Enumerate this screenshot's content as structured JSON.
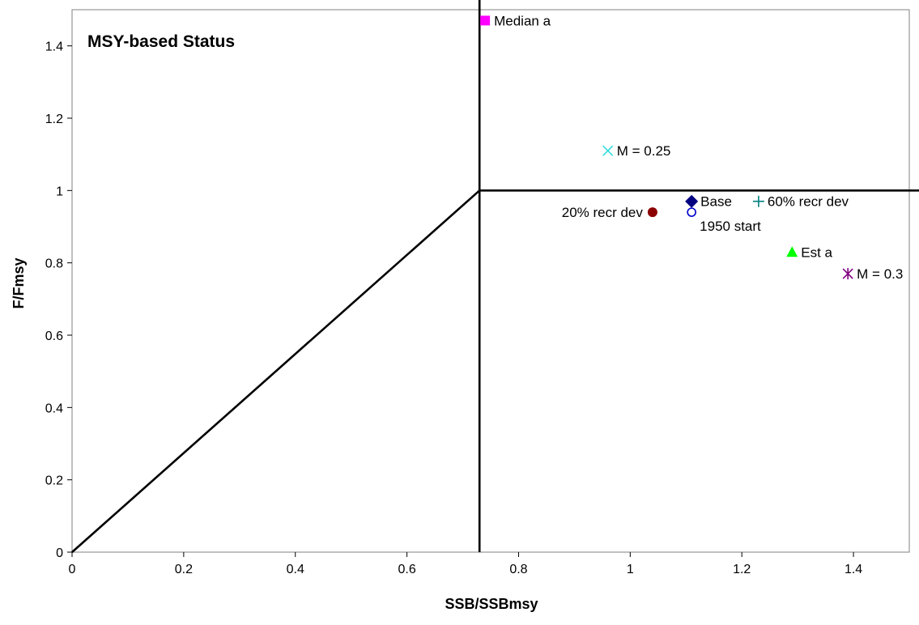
{
  "chart_data": {
    "type": "scatter",
    "title": "MSY-based Status",
    "xlabel": "SSB/SSBmsy",
    "ylabel": "F/Fmsy",
    "xlim": [
      0,
      1.5
    ],
    "ylim": [
      0,
      1.5
    ],
    "x_ticks": [
      "0",
      "0.2",
      "0.4",
      "0.6",
      "0.8",
      "1",
      "1.2",
      "1.4"
    ],
    "y_ticks": [
      "0",
      "0.2",
      "0.4",
      "0.6",
      "0.8",
      "1",
      "1.2",
      "1.4"
    ],
    "grid": false,
    "reference_lines": {
      "ssb_ratio_threshold": 0.73,
      "f_ratio_threshold": 1.0,
      "color": "#000000"
    },
    "points": [
      {
        "label": "Base",
        "x": 1.11,
        "y": 0.97,
        "marker": "diamond",
        "color": "#000080",
        "label_side": "right"
      },
      {
        "label": "1950 start",
        "x": 1.11,
        "y": 0.94,
        "marker": "circle-open",
        "color": "#0000cc",
        "label_side": "below-right"
      },
      {
        "label": "20% recr dev",
        "x": 1.04,
        "y": 0.94,
        "marker": "circle",
        "color": "#8b0000",
        "label_side": "left"
      },
      {
        "label": "60% recr dev",
        "x": 1.23,
        "y": 0.97,
        "marker": "plus",
        "color": "#008080",
        "label_side": "right"
      },
      {
        "label": "M = 0.25",
        "x": 0.96,
        "y": 1.11,
        "marker": "x",
        "color": "#33dddd",
        "label_side": "right"
      },
      {
        "label": "Median a",
        "x": 0.74,
        "y": 1.47,
        "marker": "square",
        "color": "#ff00ff",
        "label_side": "right"
      },
      {
        "label": "Est a",
        "x": 1.29,
        "y": 0.83,
        "marker": "triangle",
        "color": "#00ff00",
        "label_side": "right"
      },
      {
        "label": "M = 0.3",
        "x": 1.39,
        "y": 0.77,
        "marker": "star",
        "color": "#800080",
        "label_side": "right"
      }
    ]
  }
}
